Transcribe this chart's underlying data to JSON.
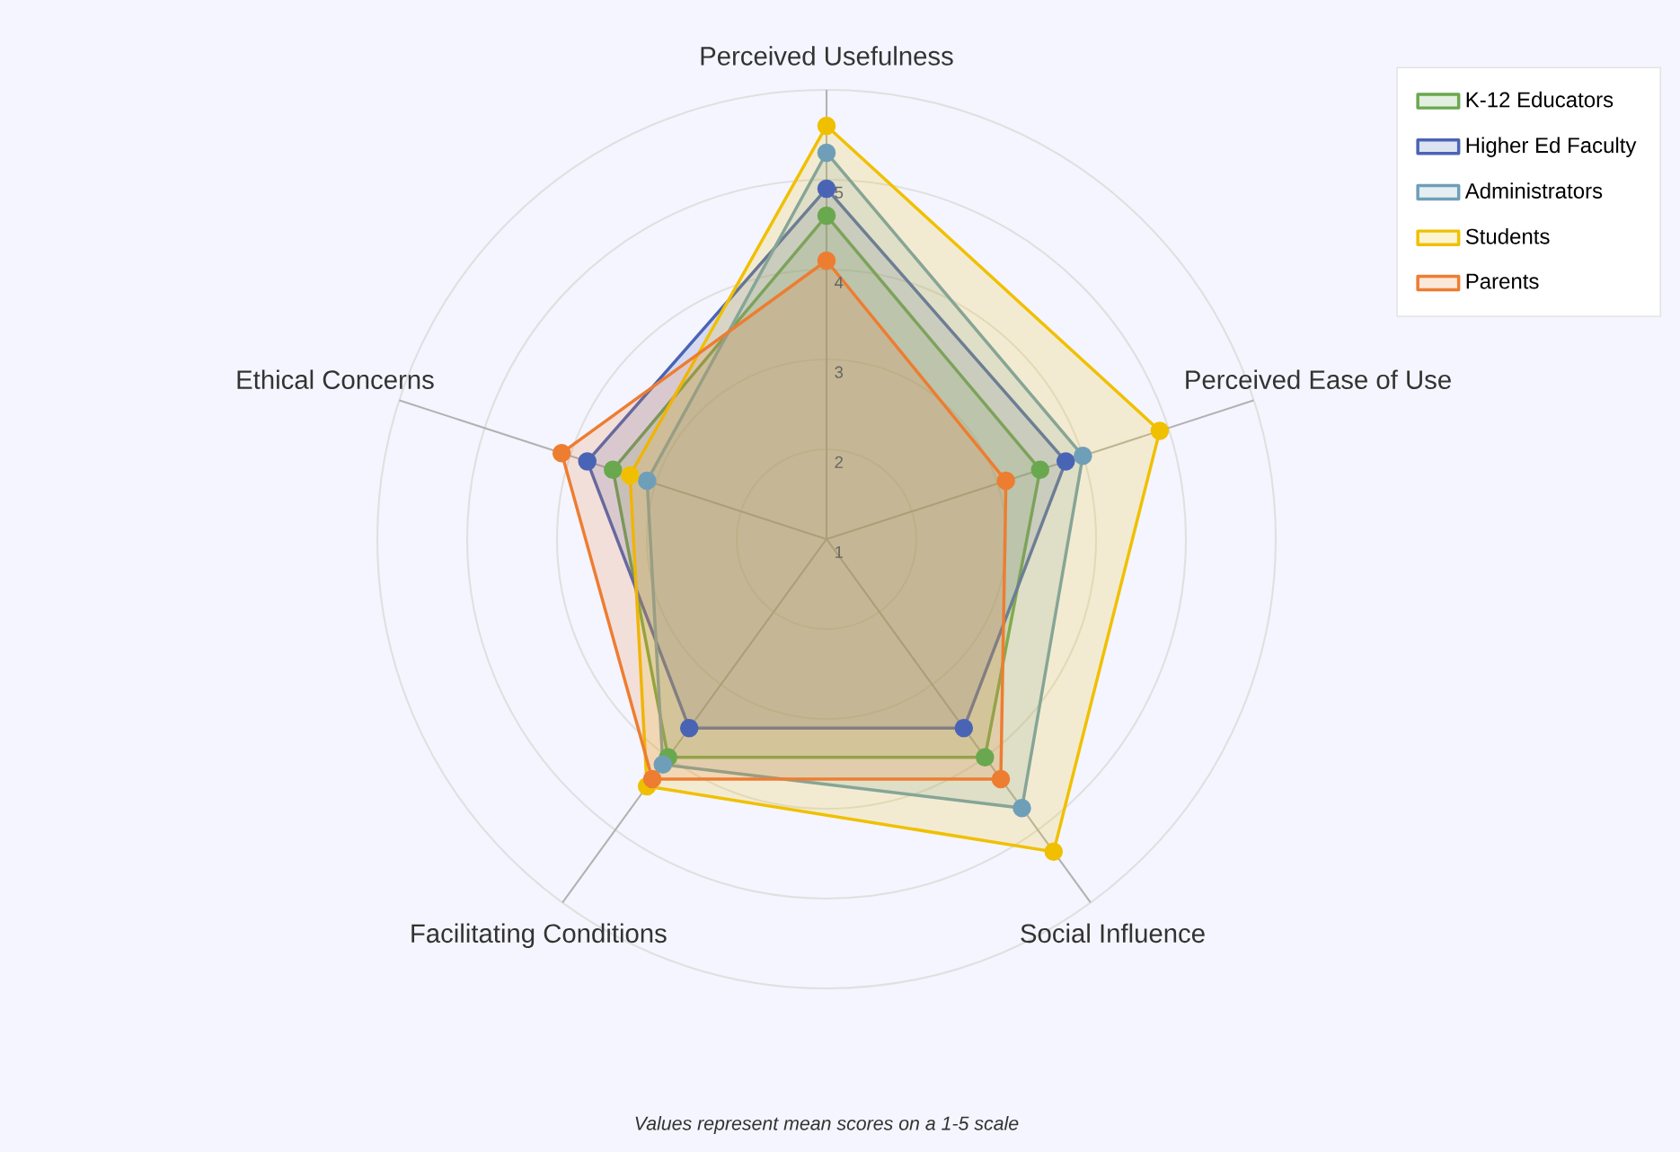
{
  "chart_data": {
    "type": "radar",
    "categories": [
      "Perceived Usefulness",
      "Perceived Ease of Use",
      "Social Influence",
      "Facilitating Conditions",
      "Ethical Concerns"
    ],
    "ylim": [
      1,
      6
    ],
    "yticks": [
      1,
      2,
      3,
      4,
      5
    ],
    "grid": true,
    "legend": "top right",
    "marker": "circle",
    "series": [
      {
        "name": "K-12 Educators",
        "color": "#6aa84f",
        "values": [
          4.6,
          3.5,
          4.0,
          4.0,
          3.5
        ]
      },
      {
        "name": "Higher Ed Faculty",
        "color": "#4a64b5",
        "values": [
          4.9,
          3.8,
          3.6,
          3.6,
          3.8
        ]
      },
      {
        "name": "Administrators",
        "color": "#6f9fb8",
        "values": [
          5.3,
          4.0,
          4.7,
          4.1,
          3.1
        ]
      },
      {
        "name": "Students",
        "color": "#f0c000",
        "values": [
          5.6,
          4.9,
          5.3,
          4.4,
          3.3
        ]
      },
      {
        "name": "Parents",
        "color": "#ed7d31",
        "values": [
          4.1,
          3.1,
          4.3,
          4.3,
          4.1
        ]
      }
    ],
    "annotations": [
      "Values represent mean scores on a 1-5 scale"
    ]
  }
}
